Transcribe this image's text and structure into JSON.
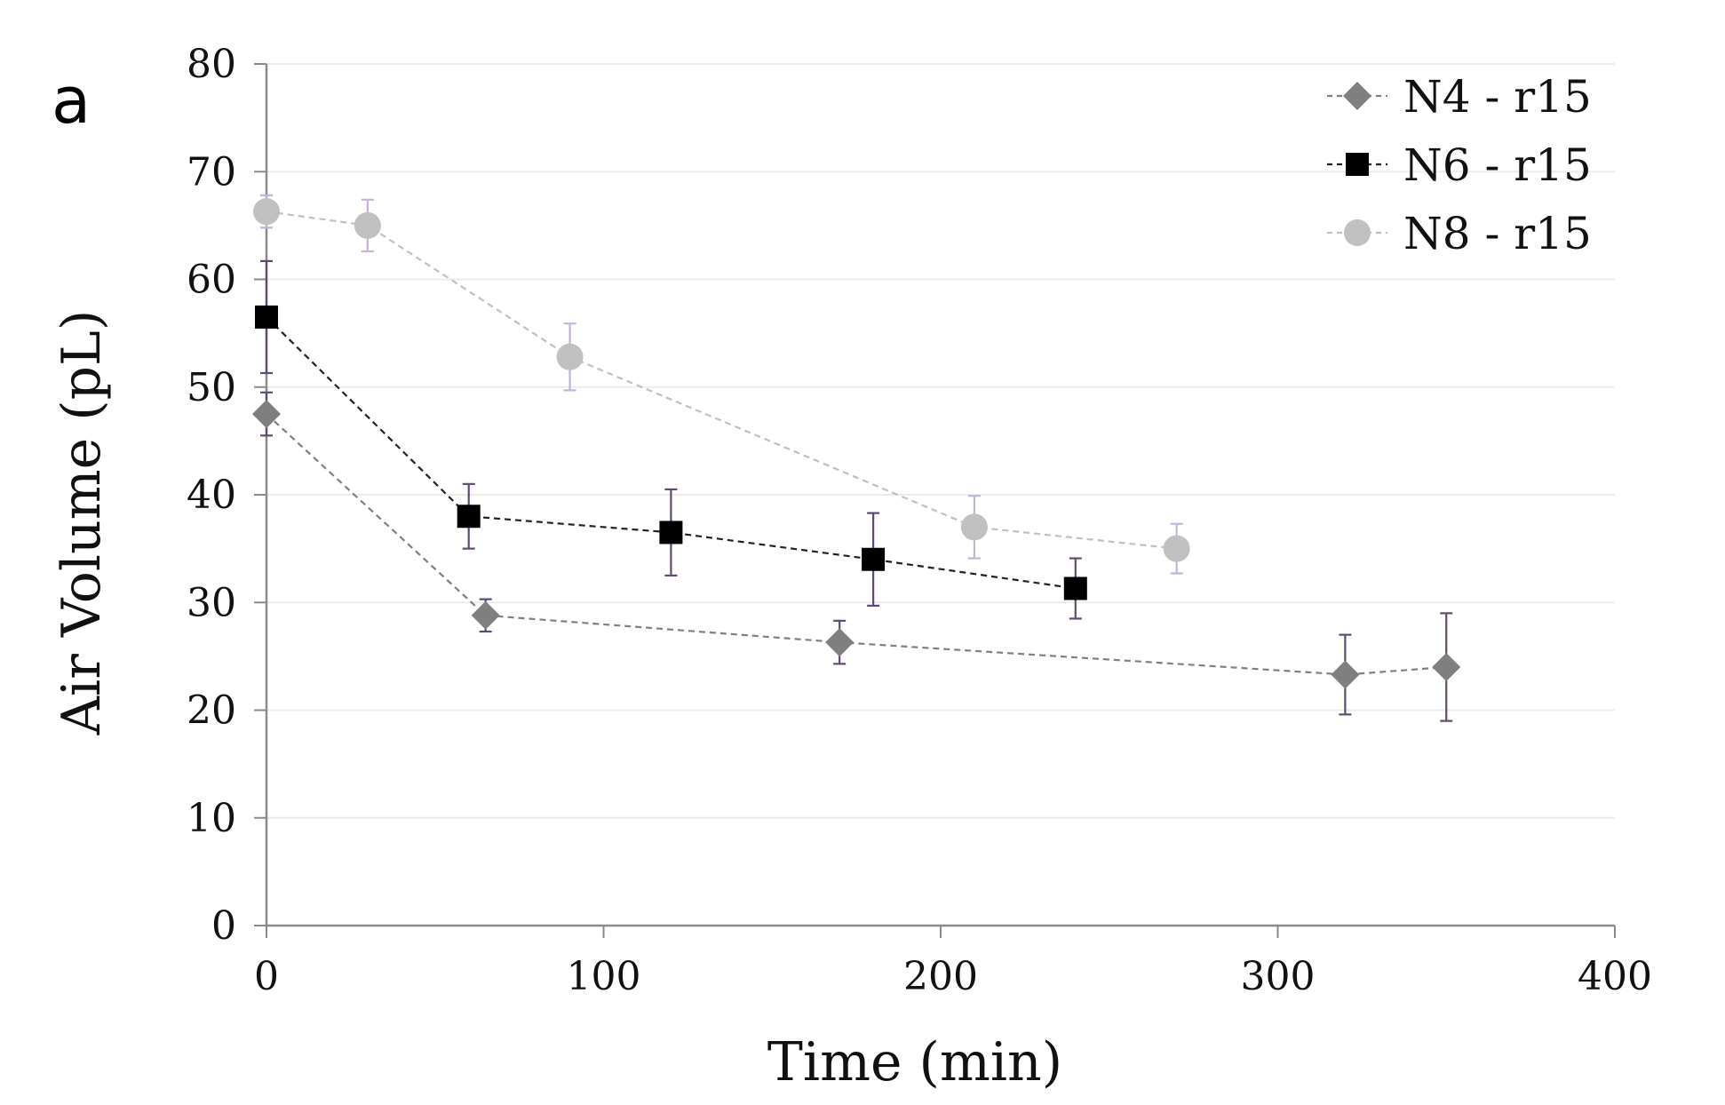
{
  "chart_data": {
    "type": "scatter",
    "panel_label": "a",
    "xlabel": "Time (min)",
    "ylabel": "Air Volume (pL)",
    "xlim": [
      0,
      400
    ],
    "ylim": [
      0,
      80
    ],
    "xticks": [
      0,
      100,
      200,
      300,
      400
    ],
    "yticks": [
      0,
      10,
      20,
      30,
      40,
      50,
      60,
      70,
      80
    ],
    "grid": true,
    "legend_position": "top-right",
    "series": [
      {
        "name": "N4 - r15",
        "marker": "diamond",
        "color": "#7f7f7f",
        "error_color": "#5e4a73",
        "x": [
          0,
          65,
          170,
          320,
          350
        ],
        "y": [
          47.5,
          28.8,
          26.3,
          23.3,
          24.0
        ],
        "err": [
          2.0,
          1.5,
          2.0,
          3.7,
          5.0
        ]
      },
      {
        "name": "N6 - r15",
        "marker": "square",
        "color": "#000000",
        "error_color": "#5e4a73",
        "x": [
          0,
          60,
          120,
          180,
          240
        ],
        "y": [
          56.5,
          38.0,
          36.5,
          34.0,
          31.3
        ],
        "err": [
          5.2,
          3.0,
          4.0,
          4.3,
          2.8
        ]
      },
      {
        "name": "N8 - r15",
        "marker": "circle",
        "color": "#c0c0c0",
        "error_color": "#c4b3d6",
        "x": [
          0,
          30,
          90,
          210,
          270
        ],
        "y": [
          66.3,
          65.0,
          52.8,
          37.0,
          35.0
        ],
        "err": [
          1.5,
          2.4,
          3.1,
          2.9,
          2.3
        ]
      }
    ]
  }
}
